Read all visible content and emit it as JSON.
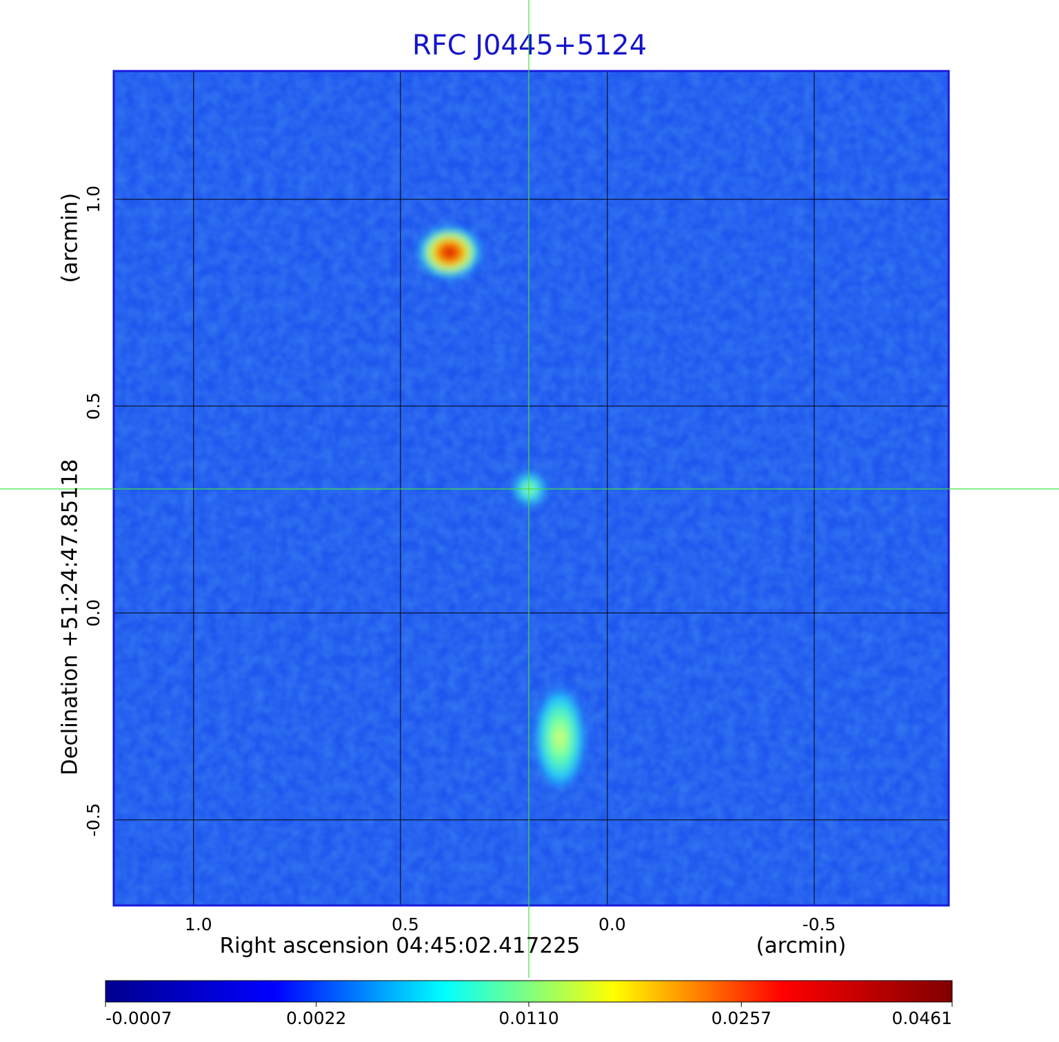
{
  "chart_data": {
    "type": "image",
    "title": "RFC J0445+5124",
    "x_label": "Right ascension  04:45:02.417225",
    "x_unit": "(arcmin)",
    "y_label": "Declination  +51:24:47.85118",
    "y_unit": "(arcmin)",
    "xlim": [
      1.193,
      -0.825
    ],
    "ylim": [
      -0.707,
      1.31
    ],
    "xticks": [
      {
        "value": 1,
        "label": "1.0"
      },
      0.5,
      {
        "value": 0,
        "label": "0.0"
      },
      -0.5
    ],
    "yticks": [
      {
        "value": 1,
        "label": "1.0"
      },
      0.5,
      {
        "value": 0,
        "label": "0.0"
      },
      -0.5
    ],
    "grid": true,
    "colorbar": {
      "scale": "sqrt",
      "clim": [
        -0.0007,
        0.0461
      ],
      "ticks": [
        -0.0007,
        0.0022,
        {
          "value": 0.011,
          "label": "0.0110"
        },
        0.0257,
        0.0461
      ],
      "colors": [
        "#00008f",
        "#0000ff",
        "#00ffff",
        "#ffff00",
        "#ff0000",
        "#800000"
      ]
    }
  }
}
